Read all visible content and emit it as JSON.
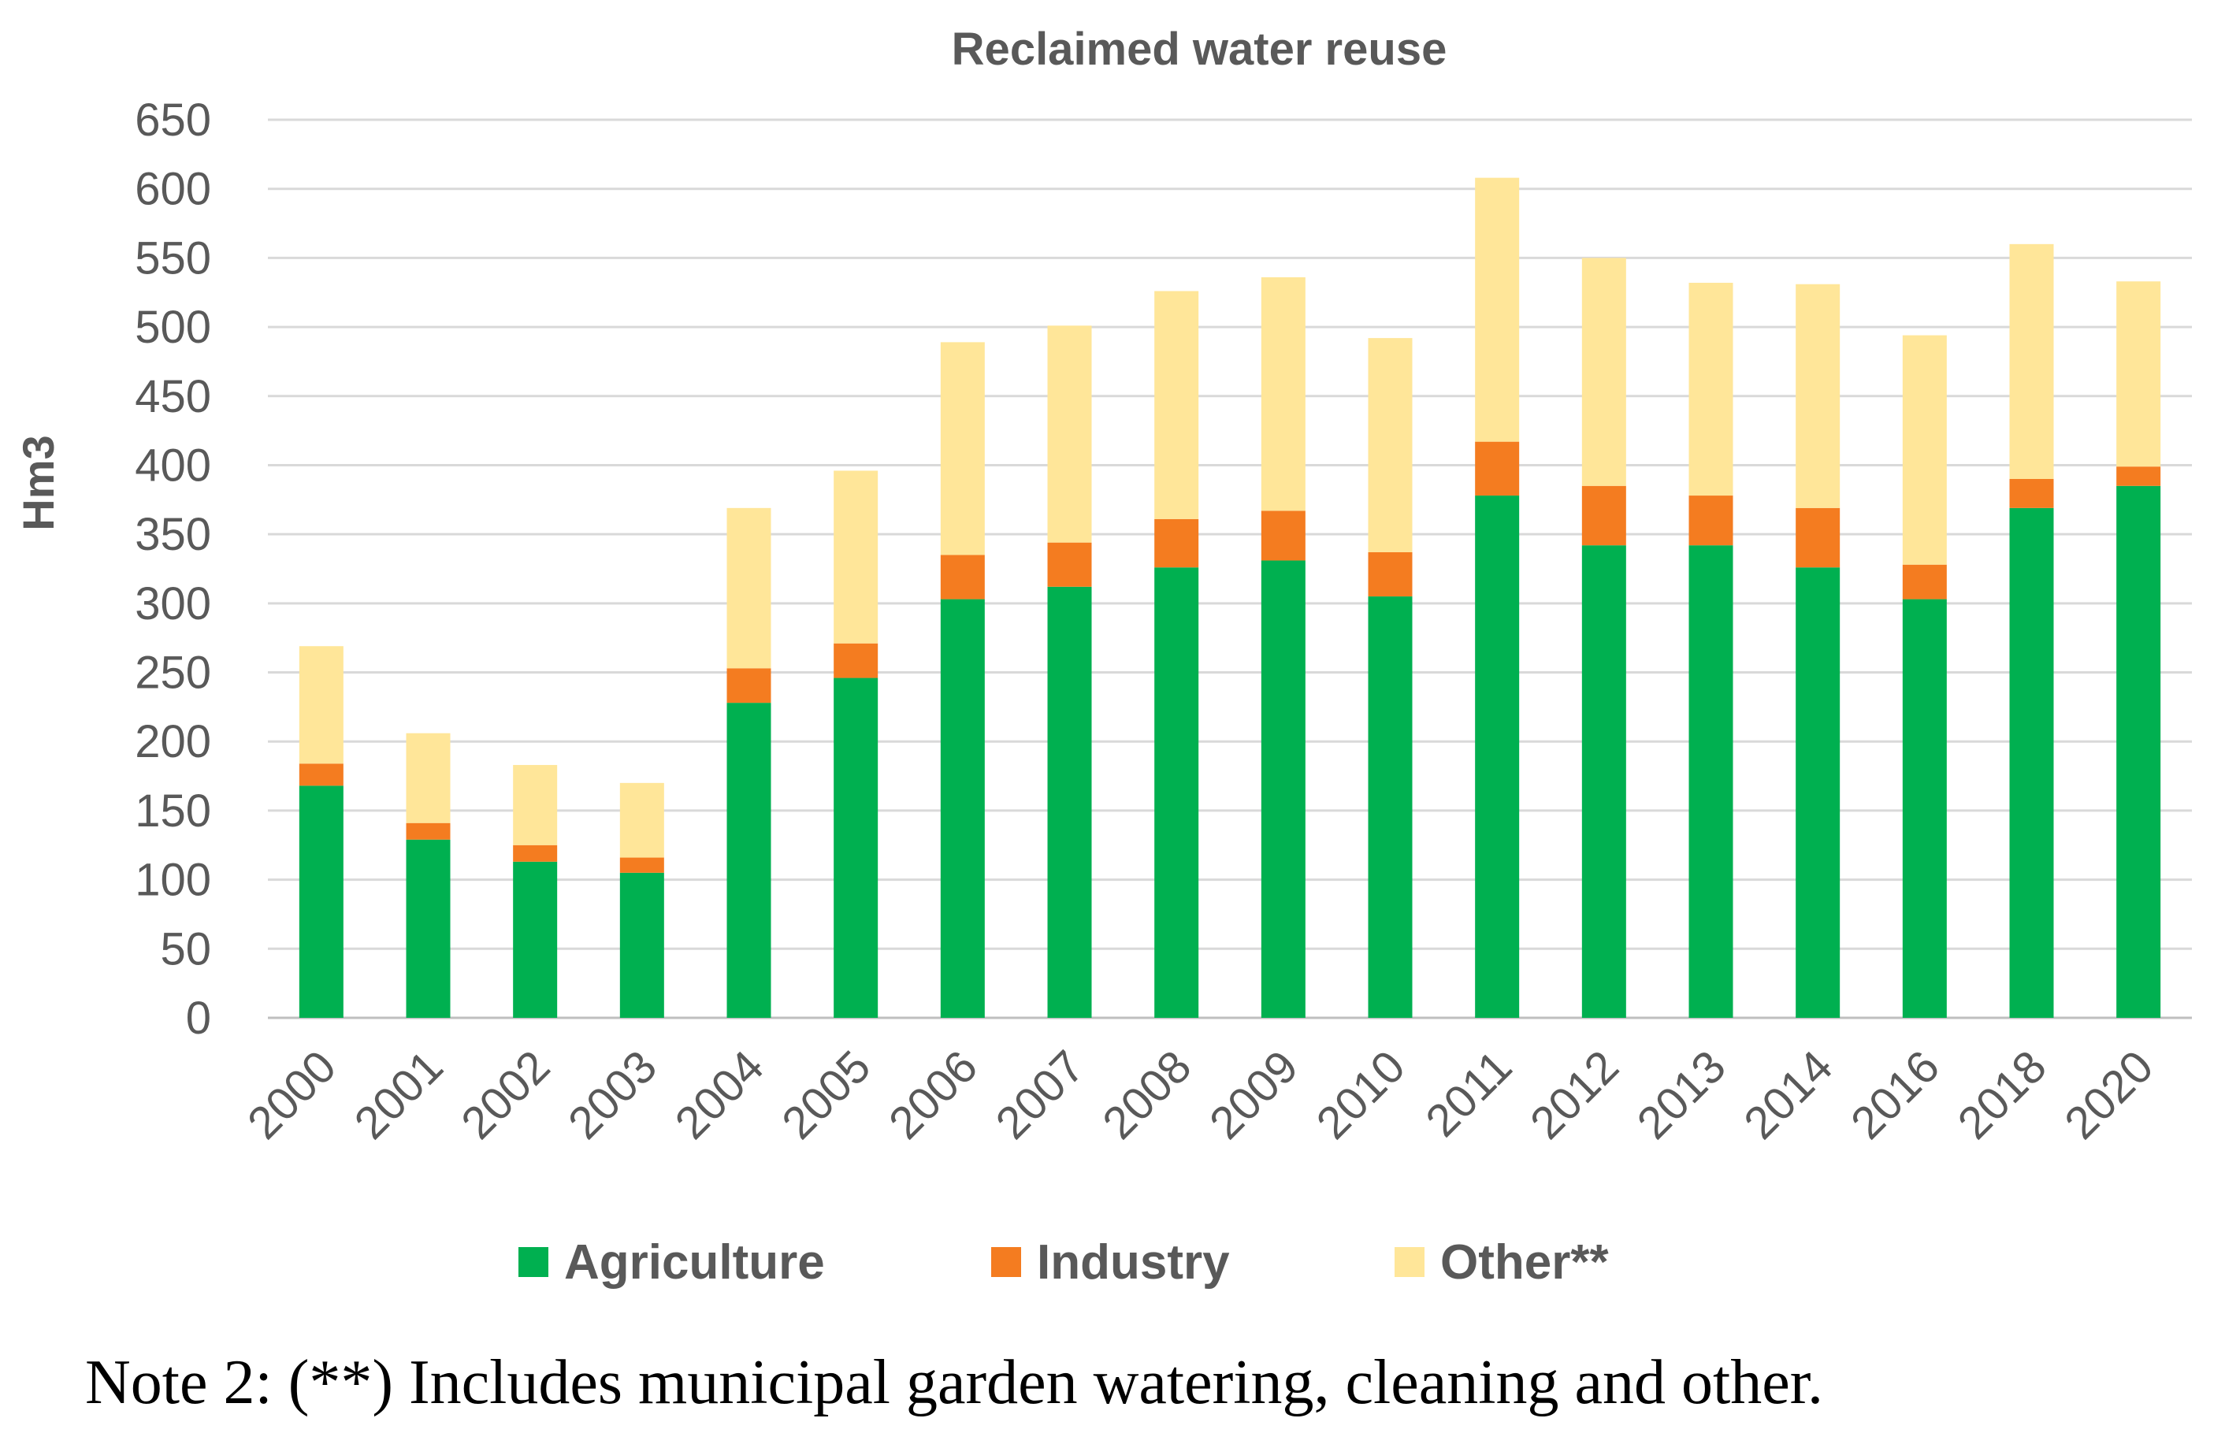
{
  "chart_data": {
    "type": "bar",
    "stacked": true,
    "title": "Reclaimed water reuse",
    "xlabel": "",
    "ylabel": "Hm3",
    "ylim": [
      0,
      650
    ],
    "yticks": [
      0,
      50,
      100,
      150,
      200,
      250,
      300,
      350,
      400,
      450,
      500,
      550,
      600,
      650
    ],
    "grid": true,
    "legend_position": "bottom",
    "categories": [
      "2000",
      "2001",
      "2002",
      "2003",
      "2004",
      "2005",
      "2006",
      "2007",
      "2008",
      "2009",
      "2010",
      "2011",
      "2012",
      "2013",
      "2014",
      "2016",
      "2018",
      "2020"
    ],
    "series": [
      {
        "name": "Agriculture",
        "color": "#00b050",
        "values": [
          168,
          129,
          113,
          105,
          228,
          246,
          303,
          312,
          326,
          331,
          305,
          378,
          342,
          342,
          326,
          303,
          369,
          385
        ]
      },
      {
        "name": "Industry",
        "color": "#f47c20",
        "values": [
          16,
          12,
          12,
          11,
          25,
          25,
          32,
          32,
          35,
          36,
          32,
          39,
          43,
          36,
          43,
          25,
          21,
          14
        ]
      },
      {
        "name": "Other**",
        "color": "#ffe699",
        "values": [
          85,
          65,
          58,
          54,
          116,
          125,
          154,
          157,
          165,
          169,
          155,
          191,
          165,
          154,
          162,
          166,
          170,
          134
        ]
      }
    ]
  },
  "note": "Note 2: (**) Includes municipal garden watering, cleaning and other."
}
